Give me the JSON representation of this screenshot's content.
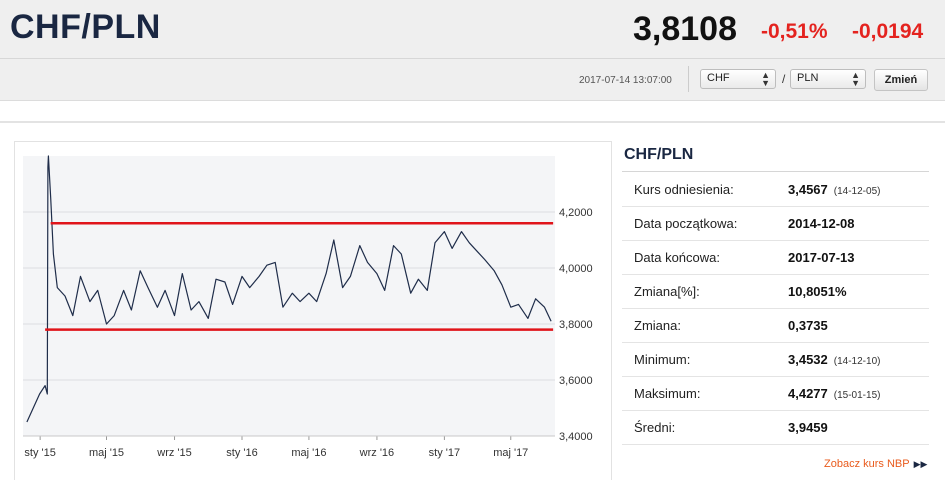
{
  "header": {
    "pair": "CHF/PLN",
    "rate": "3,8108",
    "change_pct": "-0,51%",
    "change_abs": "-0,0194",
    "timestamp": "2017-07-14 13:07:00",
    "from_currency": "CHF",
    "to_currency": "PLN",
    "separator": "/",
    "submit_label": "Zmień"
  },
  "info": {
    "title": "CHF/PLN",
    "rows": [
      {
        "label": "Kurs odniesienia:",
        "value": "3,4567",
        "sub": "(14-12-05)"
      },
      {
        "label": "Data początkowa:",
        "value": "2014-12-08",
        "sub": ""
      },
      {
        "label": "Data końcowa:",
        "value": "2017-07-13",
        "sub": ""
      },
      {
        "label": "Zmiana[%]:",
        "value": "10,8051%",
        "sub": ""
      },
      {
        "label": "Zmiana:",
        "value": "0,3735",
        "sub": ""
      },
      {
        "label": "Minimum:",
        "value": "3,4532",
        "sub": "(14-12-10)"
      },
      {
        "label": "Maksimum:",
        "value": "4,4277",
        "sub": "(15-01-15)"
      },
      {
        "label": "Średni:",
        "value": "3,9459",
        "sub": ""
      }
    ],
    "nbp_link": "Zobacz kurs NBP",
    "nbp_icon": "double-play-icon"
  },
  "colors": {
    "title": "#1a2742",
    "negative": "#e4231f",
    "line": "#1f2d4a",
    "band": "#e0141a",
    "link": "#e95b1d"
  },
  "chart_data": {
    "type": "line",
    "x": [
      "2014-12-08",
      "2014-12-31",
      "2015-01-10",
      "2015-01-14",
      "2015-01-15",
      "2015-01-16",
      "2015-01-20",
      "2015-01-25",
      "2015-02-01",
      "2015-02-15",
      "2015-03-01",
      "2015-03-15",
      "2015-04-01",
      "2015-04-15",
      "2015-05-01",
      "2015-05-15",
      "2015-06-01",
      "2015-06-15",
      "2015-07-01",
      "2015-07-15",
      "2015-08-01",
      "2015-08-15",
      "2015-09-01",
      "2015-09-15",
      "2015-10-01",
      "2015-10-15",
      "2015-11-01",
      "2015-11-15",
      "2015-12-01",
      "2015-12-15",
      "2016-01-01",
      "2016-01-15",
      "2016-02-01",
      "2016-02-15",
      "2016-03-01",
      "2016-03-15",
      "2016-04-01",
      "2016-04-15",
      "2016-05-01",
      "2016-05-15",
      "2016-06-01",
      "2016-06-15",
      "2016-07-01",
      "2016-07-15",
      "2016-08-01",
      "2016-08-15",
      "2016-09-01",
      "2016-09-15",
      "2016-10-01",
      "2016-10-15",
      "2016-11-01",
      "2016-11-15",
      "2016-12-01",
      "2016-12-15",
      "2017-01-01",
      "2017-01-15",
      "2017-02-01",
      "2017-02-15",
      "2017-03-01",
      "2017-03-15",
      "2017-04-01",
      "2017-04-15",
      "2017-05-01",
      "2017-05-15",
      "2017-06-01",
      "2017-06-15",
      "2017-07-01",
      "2017-07-13"
    ],
    "series": [
      {
        "values": [
          3.45,
          3.55,
          3.58,
          3.55,
          4.36,
          4.4,
          4.25,
          4.05,
          3.93,
          3.9,
          3.83,
          3.97,
          3.88,
          3.92,
          3.8,
          3.83,
          3.92,
          3.85,
          3.99,
          3.93,
          3.86,
          3.92,
          3.83,
          3.98,
          3.85,
          3.88,
          3.82,
          3.96,
          3.95,
          3.87,
          3.97,
          3.93,
          3.97,
          4.01,
          4.02,
          3.86,
          3.91,
          3.88,
          3.91,
          3.88,
          3.98,
          4.1,
          3.93,
          3.97,
          4.08,
          4.02,
          3.98,
          3.92,
          4.08,
          4.05,
          3.91,
          3.96,
          3.92,
          4.09,
          4.13,
          4.07,
          4.13,
          4.09,
          4.06,
          4.03,
          3.99,
          3.94,
          3.86,
          3.87,
          3.82,
          3.89,
          3.86,
          3.81
        ]
      }
    ],
    "x_ticks": [
      "sty '15",
      "maj '15",
      "wrz '15",
      "sty '16",
      "maj '16",
      "wrz '16",
      "sty '17",
      "maj '17"
    ],
    "y_ticks": [
      "3,4000",
      "3,6000",
      "3,8000",
      "4,0000",
      "4,2000"
    ],
    "ylim": [
      3.4,
      4.4
    ],
    "support_level": 3.78,
    "resistance_level": 4.16,
    "grid": true,
    "y_axis_side": "right"
  }
}
